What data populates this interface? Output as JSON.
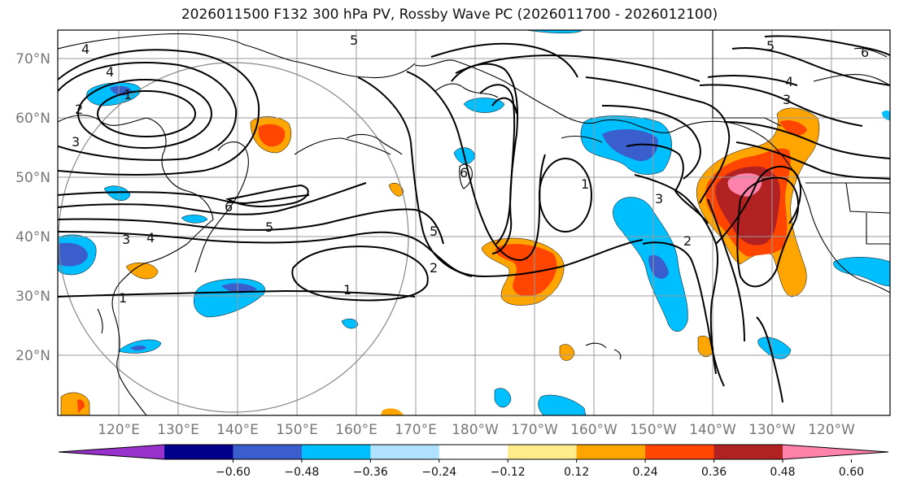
{
  "title": "2026011500 F132 300 hPa PV, Rossby Wave PC (2026011700 - 2026012100)",
  "lat_labels": [
    "70°N",
    "60°N",
    "50°N",
    "40°N",
    "30°N",
    "20°N"
  ],
  "lon_labels": [
    "120°E",
    "130°E",
    "140°E",
    "150°E",
    "160°E",
    "170°E",
    "180°W",
    "170°W",
    "160°W",
    "150°W",
    "140°W",
    "130°W",
    "120°W"
  ],
  "contour_labels": [
    "4",
    "5",
    "5",
    "6",
    "4",
    "4",
    "1",
    "2",
    "3",
    "3",
    "3",
    "2",
    "1",
    "6",
    "6",
    "5",
    "5",
    "4",
    "3",
    "2",
    "1",
    "1",
    "2",
    "3",
    "4",
    "5"
  ],
  "colorbar": {
    "colors": [
      "#9932cc",
      "#00008b",
      "#3a5fcd",
      "#00bfff",
      "#b0e2ff",
      "#ffffff",
      "#ffec8b",
      "#ffa500",
      "#ff4500",
      "#b22222",
      "#ff82ab"
    ],
    "ticks": [
      "−0.60",
      "−0.48",
      "−0.36",
      "−0.24",
      "−0.12",
      "0.12",
      "0.24",
      "0.36",
      "0.48",
      "0.60"
    ]
  },
  "palette": {
    "neg_light": "#b0e2ff",
    "neg_mid": "#00bfff",
    "neg_dark": "#3a5fcd",
    "neg_darkest": "#00008b",
    "pos_light": "#ffec8b",
    "pos_mid": "#ffa500",
    "pos_dark": "#ff4500",
    "pos_darker": "#b22222",
    "pos_top": "#ff82ab"
  }
}
